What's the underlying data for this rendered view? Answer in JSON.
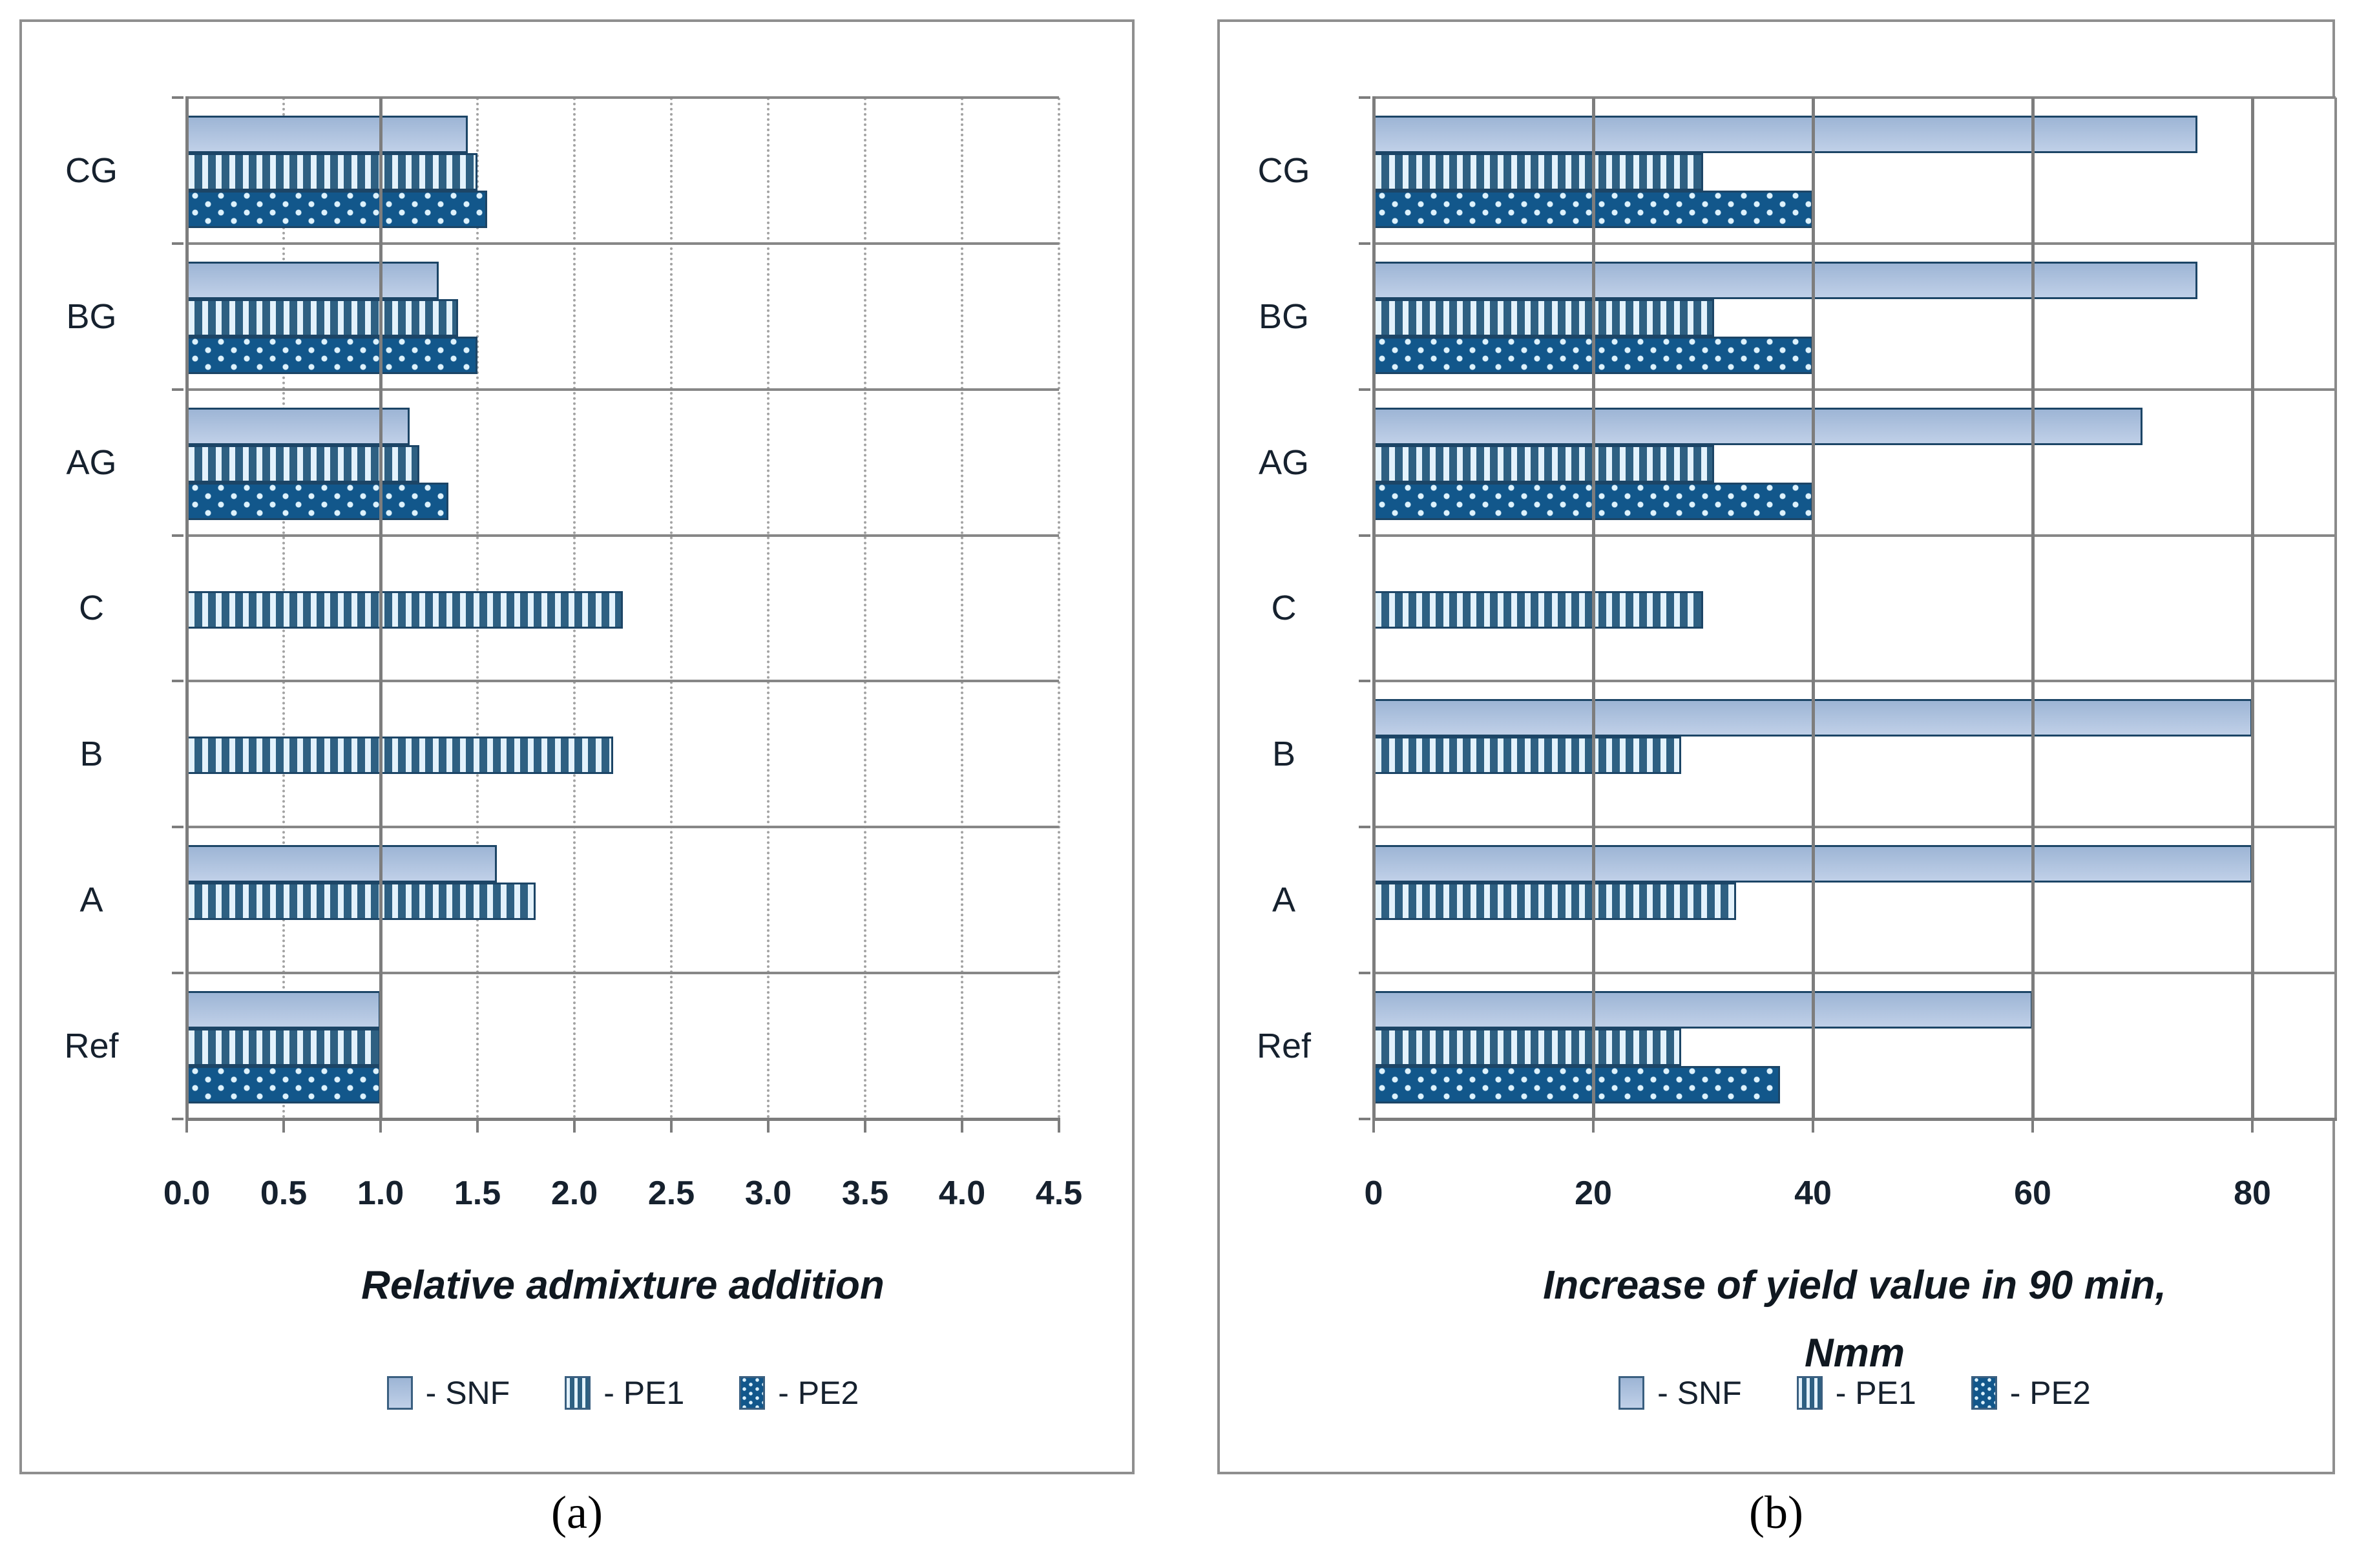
{
  "figure": {
    "captions": [
      "(a)",
      "(b)"
    ],
    "legend": [
      {
        "series": "SNF",
        "label": "- SNF"
      },
      {
        "series": "PE1",
        "label": "- PE1"
      },
      {
        "series": "PE2",
        "label": "- PE2"
      }
    ],
    "colors": {
      "snf_fill": "#aec4de",
      "pe1_stripe": "#2e6082",
      "pe1_background": "#e3f2fc",
      "pe2_fill": "#12578b",
      "pe2_dot": "#ddf2fd",
      "bar_border": "#1c4566",
      "grid_gray": "#808080",
      "panel_border": "#8f8f8f",
      "text": "#16212e"
    }
  },
  "chart_data": [
    {
      "id": "a",
      "type": "bar",
      "orientation": "horizontal",
      "xlabel_lines": [
        "Relative admixture addition"
      ],
      "categories": [
        "CG",
        "BG",
        "AG",
        "C",
        "B",
        "A",
        "Ref"
      ],
      "series": [
        {
          "name": "SNF",
          "values": [
            1.45,
            1.3,
            1.15,
            null,
            null,
            1.6,
            1.0
          ]
        },
        {
          "name": "PE1",
          "values": [
            1.5,
            1.4,
            1.2,
            2.25,
            2.2,
            1.8,
            1.0
          ]
        },
        {
          "name": "PE2",
          "values": [
            1.55,
            1.5,
            1.35,
            null,
            null,
            null,
            1.0
          ]
        }
      ],
      "xlim": [
        0,
        4.5
      ],
      "x_ticks": [
        "0.0",
        "0.5",
        "1.0",
        "1.5",
        "2.0",
        "2.5",
        "3.0",
        "3.5",
        "4.0",
        "4.5"
      ],
      "solid_gridlines": [
        1.0
      ],
      "dotted_gridlines": [
        0.5,
        1.5,
        2.0,
        2.5,
        3.0,
        3.5,
        4.0,
        4.5
      ],
      "grid": "on",
      "legend_position": "bottom"
    },
    {
      "id": "b",
      "type": "bar",
      "orientation": "horizontal",
      "xlabel_lines": [
        "Increase of yield value in 90 min,",
        "Nmm"
      ],
      "categories": [
        "CG",
        "BG",
        "AG",
        "C",
        "B",
        "A",
        "Ref"
      ],
      "series": [
        {
          "name": "SNF",
          "values": [
            75,
            75,
            70,
            null,
            80,
            80,
            60
          ]
        },
        {
          "name": "PE1",
          "values": [
            30,
            31,
            31,
            30,
            28,
            33,
            28
          ]
        },
        {
          "name": "PE2",
          "values": [
            40,
            40,
            40,
            null,
            null,
            null,
            37
          ]
        }
      ],
      "xlim": [
        0,
        80
      ],
      "x_ticks": [
        "0",
        "20",
        "40",
        "60",
        "80"
      ],
      "solid_gridlines": [
        20,
        40,
        60,
        80
      ],
      "dotted_gridlines": [],
      "grid": "on",
      "legend_position": "bottom"
    }
  ]
}
